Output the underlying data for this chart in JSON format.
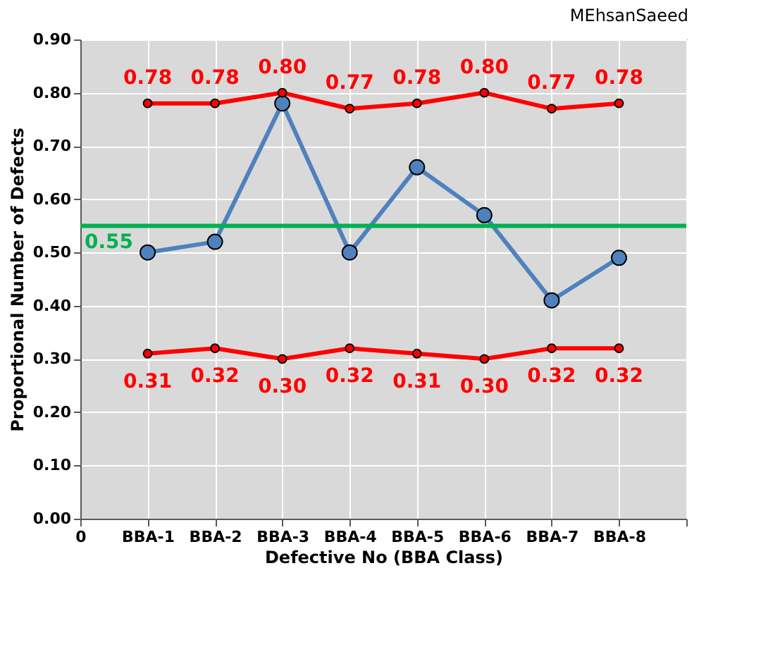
{
  "chart_data": {
    "type": "line",
    "title": "MEhsanSaeed",
    "xlabel": "Defective No (BBA Class)",
    "ylabel": "Proportional Number of Defects",
    "categories": [
      "0",
      "BBA-1",
      "BBA-2",
      "BBA-3",
      "BBA-4",
      "BBA-5",
      "BBA-6",
      "BBA-7",
      "BBA-8",
      null
    ],
    "series": [
      {
        "color": "#4f81bd",
        "values": [
          null,
          0.5,
          0.52,
          0.78,
          0.5,
          0.66,
          0.57,
          0.41,
          0.49,
          null
        ]
      },
      {
        "color": "#ff0000",
        "values": [
          null,
          0.78,
          0.78,
          0.8,
          0.77,
          0.78,
          0.8,
          0.77,
          0.78,
          null
        ],
        "value_labels": [
          null,
          "0.78",
          "0.78",
          "0.80",
          "0.77",
          "0.78",
          "0.80",
          "0.77",
          "0.78",
          null
        ]
      },
      {
        "color": "#ff0000",
        "values": [
          null,
          0.31,
          0.32,
          0.3,
          0.32,
          0.31,
          0.3,
          0.32,
          0.32,
          null
        ],
        "value_labels": [
          null,
          "0.31",
          "0.32",
          "0.30",
          "0.32",
          "0.31",
          "0.30",
          "0.32",
          "0.32",
          null
        ]
      }
    ],
    "ylim": [
      0,
      0.9
    ],
    "yticks": [
      {
        "value": 0,
        "label": "0.00"
      },
      {
        "value": 0.1,
        "label": "0.10"
      },
      {
        "value": 0.2,
        "label": "0.20"
      },
      {
        "value": 0.3,
        "label": "0.30"
      },
      {
        "value": 0.4,
        "label": "0.40"
      },
      {
        "value": 0.5,
        "label": "0.50"
      },
      {
        "value": 0.6,
        "label": "0.60"
      },
      {
        "value": 0.7,
        "label": "0.70"
      },
      {
        "value": 0.8,
        "label": "0.80"
      },
      {
        "value": 0.9,
        "label": "0.90"
      }
    ],
    "ref_lines": [
      {
        "axis": "y",
        "value": 0.55,
        "label": "0.55",
        "color": "#00b050"
      }
    ],
    "grid": true,
    "marker": "circle",
    "line_style": "solid"
  }
}
